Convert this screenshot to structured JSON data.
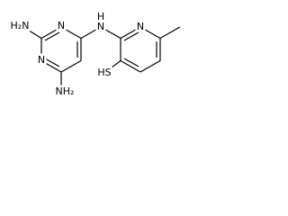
{
  "atoms": {
    "amino_top": "H₂N",
    "ring_n_top": "N",
    "ring_n_left": "N",
    "amino_bottom": "NH₂",
    "bridge_n": "N",
    "bridge_h": "H",
    "pyridine_n": "N",
    "thiol": "HS"
  }
}
